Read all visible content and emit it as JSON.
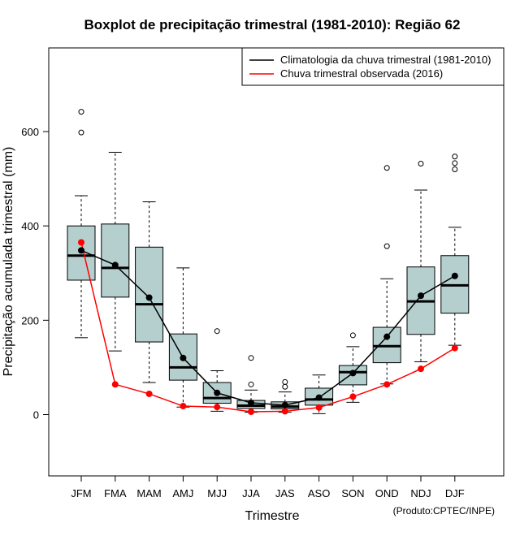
{
  "chart_data": {
    "type": "boxplot",
    "title": "Boxplot de precipitação trimestral (1981-2010): Região 62",
    "xlabel": "Trimestre",
    "ylabel": "Precipitação acumulada trimestral (mm)",
    "ylim": [
      -130,
      780
    ],
    "yticks": [
      0,
      200,
      400,
      600
    ],
    "credit": "(Produto:CPTEC/INPE)",
    "legend_position": "top-right",
    "categories": [
      "JFM",
      "FMA",
      "MAM",
      "AMJ",
      "MJJ",
      "JJA",
      "JAS",
      "ASO",
      "SON",
      "OND",
      "NDJ",
      "DJF"
    ],
    "boxes": [
      {
        "label": "JFM",
        "whisker_low": 163,
        "q1": 285,
        "median": 337,
        "q3": 400,
        "whisker_high": 464,
        "outliers": [
          598,
          642
        ]
      },
      {
        "label": "FMA",
        "whisker_low": 135,
        "q1": 249,
        "median": 311,
        "q3": 404,
        "whisker_high": 556,
        "outliers": []
      },
      {
        "label": "MAM",
        "whisker_low": 68,
        "q1": 154,
        "median": 234,
        "q3": 355,
        "whisker_high": 451,
        "outliers": []
      },
      {
        "label": "AMJ",
        "whisker_low": 16,
        "q1": 73,
        "median": 100,
        "q3": 171,
        "whisker_high": 311,
        "outliers": []
      },
      {
        "label": "MJJ",
        "whisker_low": 7,
        "q1": 24,
        "median": 35,
        "q3": 68,
        "whisker_high": 93,
        "outliers": [
          177
        ]
      },
      {
        "label": "JJA",
        "whisker_low": 5,
        "q1": 13,
        "median": 19,
        "q3": 30,
        "whisker_high": 52,
        "outliers": [
          64,
          120
        ]
      },
      {
        "label": "JAS",
        "whisker_low": 5,
        "q1": 12,
        "median": 17,
        "q3": 27,
        "whisker_high": 48,
        "outliers": [
          59,
          69
        ]
      },
      {
        "label": "ASO",
        "whisker_low": 2,
        "q1": 20,
        "median": 32,
        "q3": 56,
        "whisker_high": 84,
        "outliers": []
      },
      {
        "label": "SON",
        "whisker_low": 26,
        "q1": 63,
        "median": 90,
        "q3": 104,
        "whisker_high": 144,
        "outliers": [
          168
        ]
      },
      {
        "label": "OND",
        "whisker_low": 65,
        "q1": 110,
        "median": 145,
        "q3": 185,
        "whisker_high": 288,
        "outliers": [
          357,
          523
        ]
      },
      {
        "label": "NDJ",
        "whisker_low": 112,
        "q1": 170,
        "median": 240,
        "q3": 313,
        "whisker_high": 476,
        "outliers": [
          532
        ]
      },
      {
        "label": "DJF",
        "whisker_low": 147,
        "q1": 215,
        "median": 274,
        "q3": 337,
        "whisker_high": 397,
        "outliers": [
          520,
          533,
          547
        ]
      }
    ],
    "series": [
      {
        "name": "Climatologia da chuva trimestral (1981-2010)",
        "color": "#000000",
        "values": [
          348,
          317,
          248,
          120,
          46,
          25,
          20,
          36,
          88,
          165,
          252,
          294
        ]
      },
      {
        "name": "Chuva trimestral observada (2016)",
        "color": "#ff0000",
        "values": [
          365,
          64,
          44,
          18,
          16,
          6,
          7,
          15,
          38,
          64,
          97,
          141
        ]
      }
    ],
    "box_fill": "#b5cfcf"
  }
}
